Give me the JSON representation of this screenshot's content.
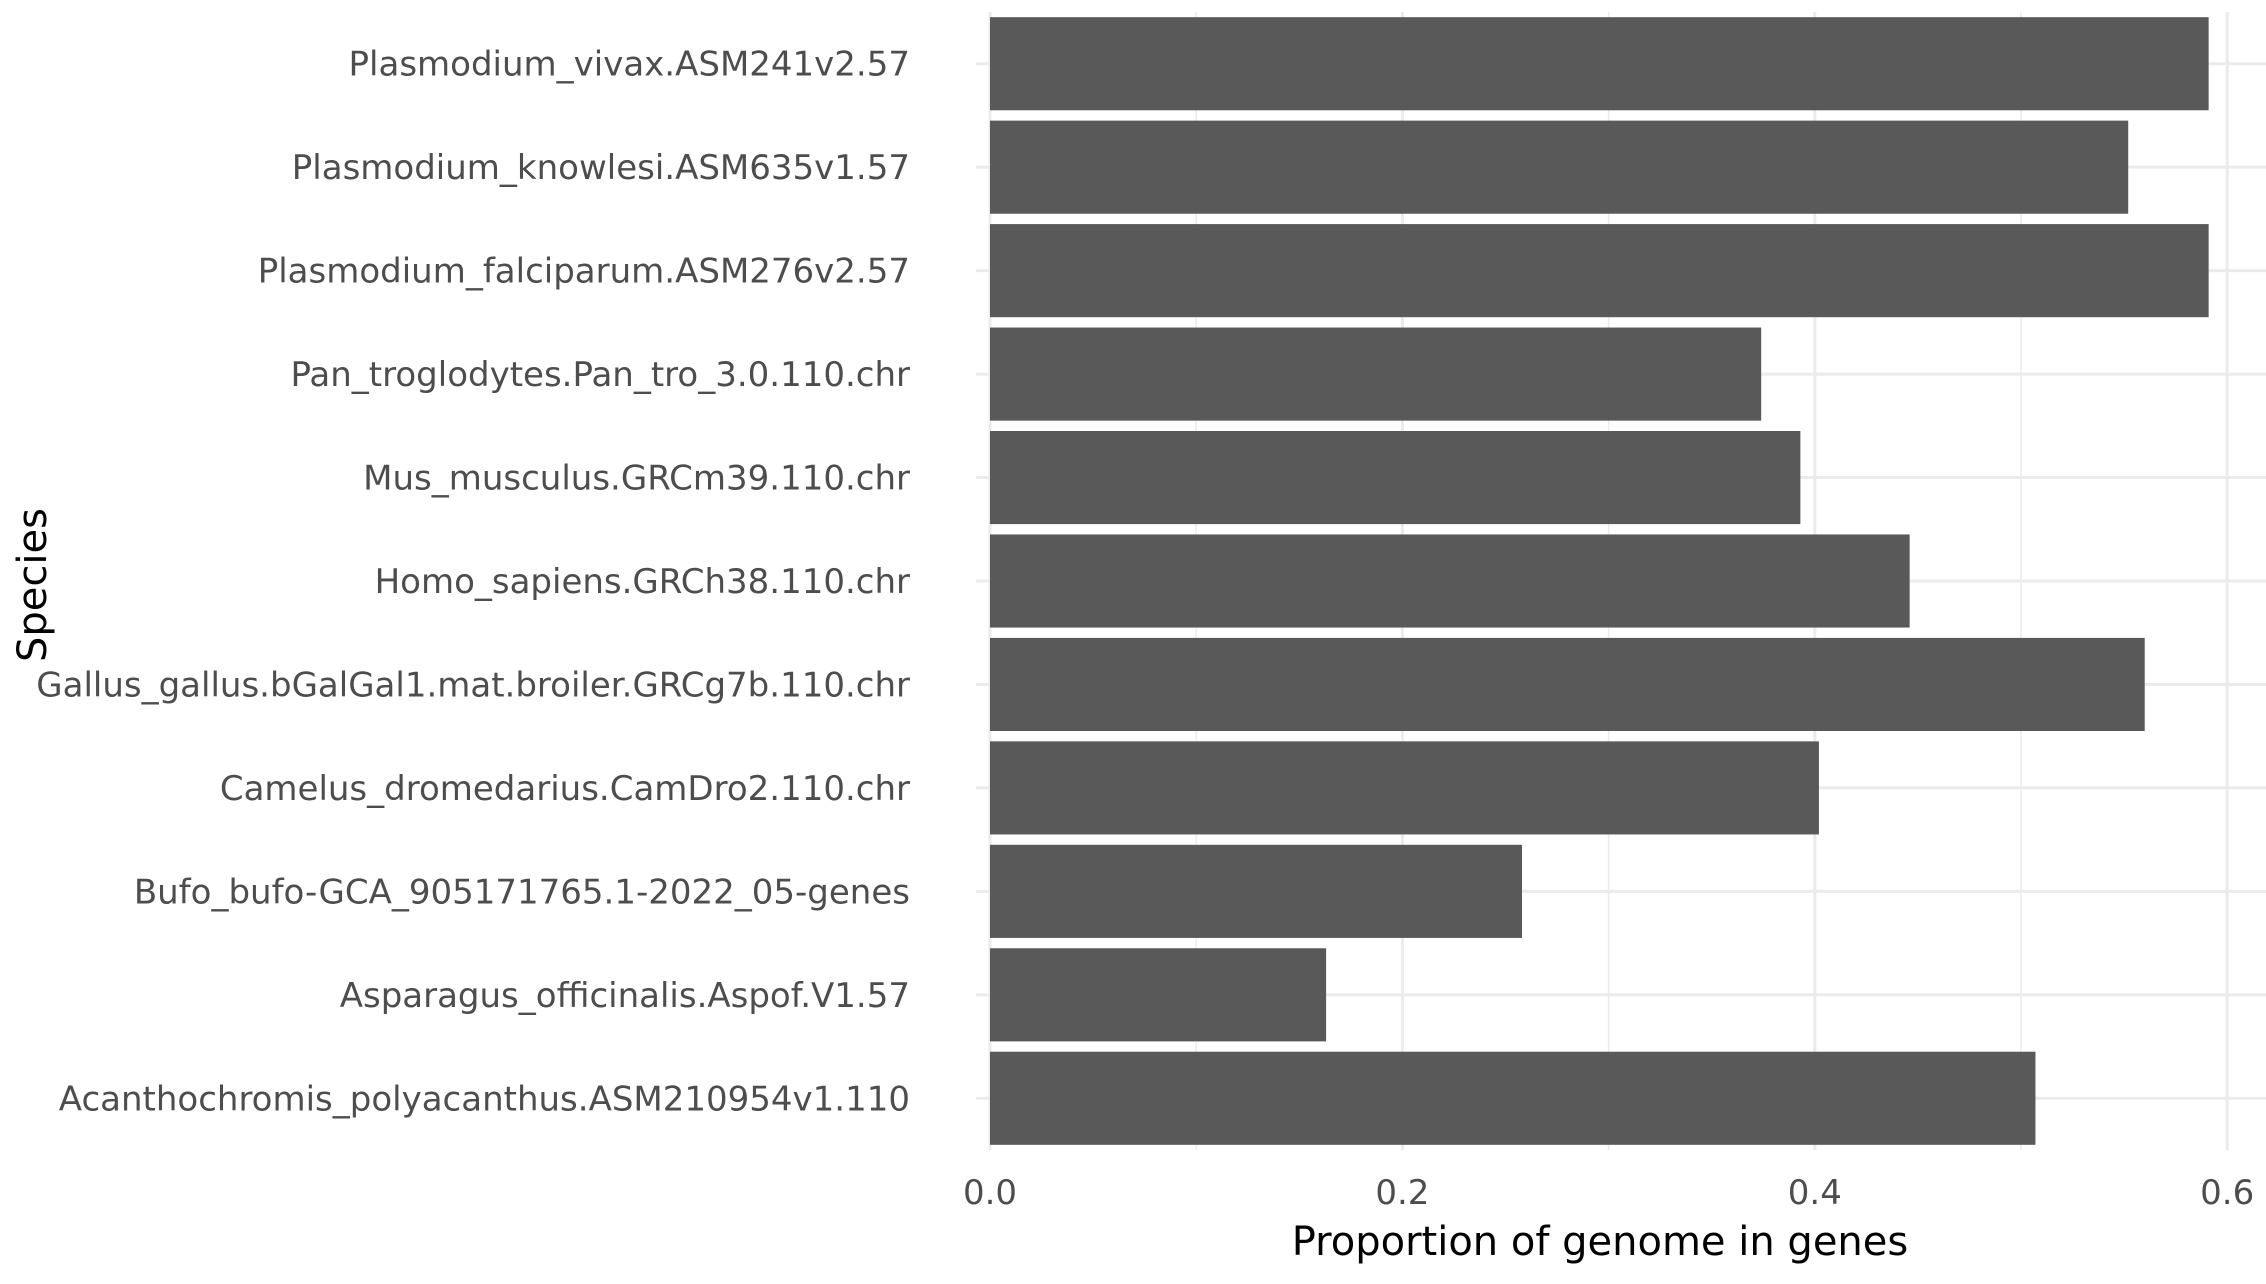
{
  "chart_data": {
    "type": "bar",
    "orientation": "horizontal",
    "title": "",
    "xlabel": "Proportion of genome in genes",
    "ylabel": "Species",
    "xlim": [
      0,
      0.62
    ],
    "x_ticks": [
      "0.0",
      "0.2",
      "0.4",
      "0.6"
    ],
    "x_tick_values": [
      0,
      0.2,
      0.4,
      0.6
    ],
    "grid": true,
    "legend": "none",
    "bar_color": "#595959",
    "grid_color": "#ebebeb",
    "categories": [
      "Acanthochromis_polyacanthus.ASM210954v1.110",
      "Asparagus_officinalis.Aspof.V1.57",
      "Bufo_bufo-GCA_905171765.1-2022_05-genes",
      "Camelus_dromedarius.CamDro2.110.chr",
      "Gallus_gallus.bGalGal1.mat.broiler.GRCg7b.110.chr",
      "Homo_sapiens.GRCh38.110.chr",
      "Mus_musculus.GRCm39.110.chr",
      "Pan_troglodytes.Pan_tro_3.0.110.chr",
      "Plasmodium_falciparum.ASM276v2.57",
      "Plasmodium_knowlesi.ASM635v1.57",
      "Plasmodium_vivax.ASM241v2.57"
    ],
    "values": [
      0.507,
      0.163,
      0.258,
      0.402,
      0.56,
      0.446,
      0.393,
      0.374,
      0.591,
      0.552,
      0.591
    ]
  }
}
